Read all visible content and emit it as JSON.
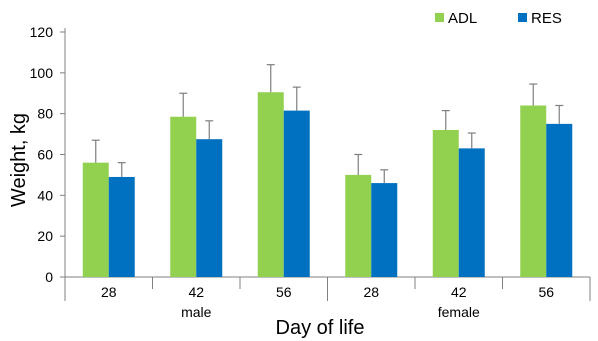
{
  "chart_data": {
    "type": "bar",
    "title": "",
    "xlabel": "Day of life",
    "ylabel": "Weight, kg",
    "ylim": [
      0,
      120
    ],
    "yticks": [
      0,
      20,
      40,
      60,
      80,
      100,
      120
    ],
    "grid": false,
    "legend_position": "top-right",
    "categories": [
      "28",
      "42",
      "56",
      "28",
      "42",
      "56"
    ],
    "groups": [
      {
        "label": "male",
        "categories": [
          "28",
          "42",
          "56"
        ]
      },
      {
        "label": "female",
        "categories": [
          "28",
          "42",
          "56"
        ]
      }
    ],
    "series": [
      {
        "name": "ADL",
        "color": "#92D050",
        "values": [
          56,
          78.5,
          90.5,
          50,
          72,
          84
        ],
        "error": [
          11,
          11.5,
          13.5,
          10,
          9.5,
          10.5
        ]
      },
      {
        "name": "RES",
        "color": "#0070C0",
        "values": [
          49,
          67.5,
          81.5,
          46,
          63,
          75
        ],
        "error": [
          7,
          9,
          11.5,
          6.5,
          7.5,
          9
        ]
      }
    ]
  }
}
